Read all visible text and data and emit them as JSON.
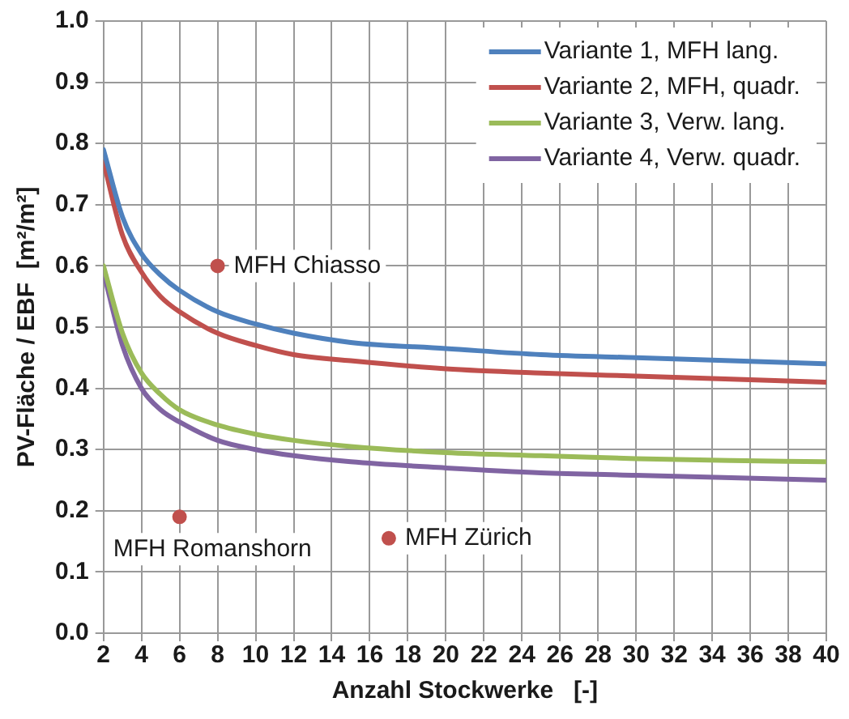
{
  "chart_data": {
    "type": "line",
    "xlabel": "Anzahl Stockwerke   [-]",
    "ylabel": "PV-Fläche / EBF  [m²/m²]",
    "x": [
      2,
      3,
      4,
      5,
      6,
      8,
      10,
      12,
      15,
      20,
      25,
      30,
      35,
      40
    ],
    "series": [
      {
        "name": "Variante 1, MFH lang.",
        "color": "#4f81bd",
        "values": [
          0.79,
          0.68,
          0.62,
          0.585,
          0.56,
          0.525,
          0.505,
          0.49,
          0.475,
          0.465,
          0.455,
          0.45,
          0.445,
          0.44
        ]
      },
      {
        "name": "Variante 2, MFH, quadr.",
        "color": "#c0504d",
        "values": [
          0.77,
          0.65,
          0.59,
          0.55,
          0.525,
          0.49,
          0.47,
          0.455,
          0.445,
          0.432,
          0.425,
          0.42,
          0.415,
          0.41
        ]
      },
      {
        "name": "Variante 3, Verw. lang.",
        "color": "#9bbb59",
        "values": [
          0.6,
          0.49,
          0.425,
          0.39,
          0.365,
          0.34,
          0.325,
          0.315,
          0.305,
          0.295,
          0.29,
          0.285,
          0.282,
          0.28
        ]
      },
      {
        "name": "Variante 4, Verw. quadr.",
        "color": "#8064a2",
        "values": [
          0.59,
          0.47,
          0.4,
          0.365,
          0.345,
          0.315,
          0.3,
          0.29,
          0.28,
          0.27,
          0.262,
          0.258,
          0.254,
          0.25
        ]
      },
      {
        "type": "scatter",
        "color": "#c0504d",
        "x": [
          8,
          6,
          17
        ],
        "values": [
          0.6,
          0.19,
          0.155
        ]
      }
    ],
    "annotations": [
      {
        "text": "MFH Chiasso",
        "x": 8,
        "y": 0.6
      },
      {
        "text": "MFH Romanshorn",
        "x": 6,
        "y": 0.19
      },
      {
        "text": "MFH Zürich",
        "x": 17,
        "y": 0.155
      }
    ],
    "xlim": [
      2,
      40
    ],
    "xticks": [
      2,
      4,
      6,
      8,
      10,
      12,
      14,
      16,
      18,
      20,
      22,
      24,
      26,
      28,
      30,
      32,
      34,
      36,
      38,
      40
    ],
    "ylim": [
      0,
      1
    ],
    "yticks": [
      {
        "value": 0,
        "label": "0.0"
      },
      0.1,
      0.2,
      0.3,
      0.4,
      0.5,
      0.6,
      0.7,
      0.8,
      0.9,
      {
        "value": 1,
        "label": "1.0"
      }
    ],
    "grid": true,
    "legend": "top right",
    "line_style": "solid"
  }
}
